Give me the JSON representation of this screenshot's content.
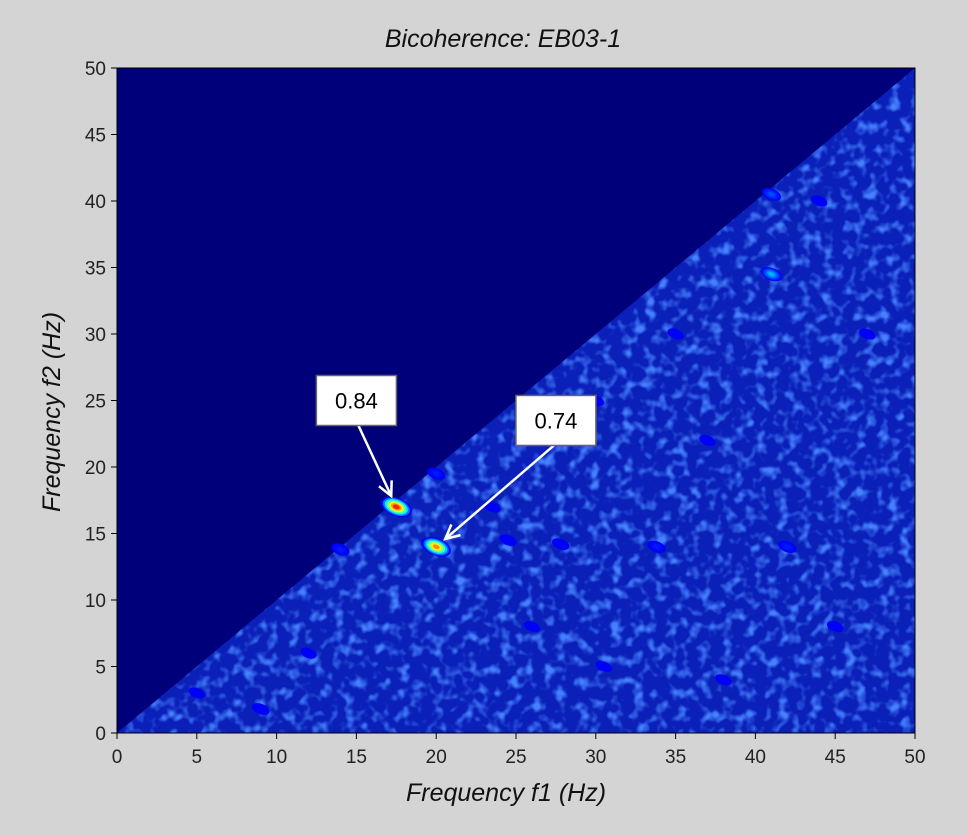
{
  "chart_data": {
    "type": "heatmap",
    "title": "Bicoherence: EB03-1",
    "xlabel": "Frequency f1 (Hz)",
    "ylabel": "Frequency f2 (Hz)",
    "xlim": [
      0,
      50
    ],
    "ylim": [
      0,
      50
    ],
    "x_ticks": [
      0,
      5,
      10,
      15,
      20,
      25,
      30,
      35,
      40,
      45,
      50
    ],
    "y_ticks": [
      0,
      5,
      10,
      15,
      20,
      25,
      30,
      35,
      40,
      45,
      50
    ],
    "grid": false,
    "colormap": "jet",
    "valid_region": "f2 <= f1",
    "colors": {
      "masked_region": "#00007a",
      "background_level": "#0a20b8",
      "frame": "#000000"
    },
    "peaks": [
      {
        "f1": 17.5,
        "f2": 17.0,
        "value": 0.84,
        "labeled": true
      },
      {
        "f1": 20.0,
        "f2": 14.0,
        "value": 0.74,
        "labeled": true
      },
      {
        "f1": 41.0,
        "f2": 34.5,
        "value": 0.3
      },
      {
        "f1": 41.0,
        "f2": 40.5,
        "value": 0.2
      },
      {
        "f1": 20.0,
        "f2": 19.5,
        "value": 0.15
      },
      {
        "f1": 14.0,
        "f2": 13.8,
        "value": 0.15
      },
      {
        "f1": 33.8,
        "f2": 14.0,
        "value": 0.15
      },
      {
        "f1": 42.0,
        "f2": 14.0,
        "value": 0.15
      },
      {
        "f1": 9.0,
        "f2": 1.8,
        "value": 0.12
      },
      {
        "f1": 27.8,
        "f2": 14.2,
        "value": 0.1
      },
      {
        "f1": 24.5,
        "f2": 14.5,
        "value": 0.1
      },
      {
        "f1": 23.5,
        "f2": 17.0,
        "value": 0.08
      },
      {
        "f1": 30.0,
        "f2": 25.0,
        "value": 0.06
      },
      {
        "f1": 37.0,
        "f2": 22.0,
        "value": 0.06
      },
      {
        "f1": 45.0,
        "f2": 8.0,
        "value": 0.06
      },
      {
        "f1": 5.0,
        "f2": 3.0,
        "value": 0.05
      },
      {
        "f1": 12.0,
        "f2": 6.0,
        "value": 0.05
      },
      {
        "f1": 30.5,
        "f2": 5.0,
        "value": 0.05
      },
      {
        "f1": 35.0,
        "f2": 30.0,
        "value": 0.05
      },
      {
        "f1": 44.0,
        "f2": 40.0,
        "value": 0.05
      },
      {
        "f1": 47.0,
        "f2": 30.0,
        "value": 0.05
      },
      {
        "f1": 26.0,
        "f2": 8.0,
        "value": 0.05
      },
      {
        "f1": 38.0,
        "f2": 4.0,
        "value": 0.05
      }
    ],
    "annotations": [
      {
        "text": "0.84",
        "f1": 17.5,
        "f2": 17.0,
        "box_f1": 15.0,
        "box_f2": 25.0
      },
      {
        "text": "0.74",
        "f1": 20.0,
        "f2": 14.0,
        "box_f1": 27.5,
        "box_f2": 23.5
      }
    ]
  }
}
